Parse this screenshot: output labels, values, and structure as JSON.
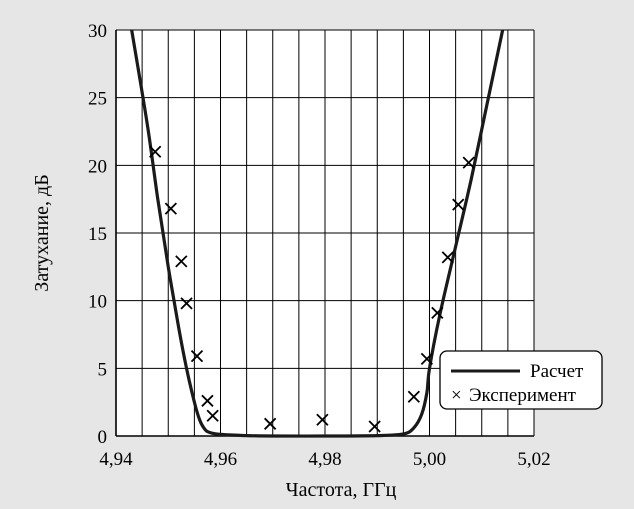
{
  "chart_data": {
    "type": "line",
    "xlabel": "Частота, ГГц",
    "ylabel": "Затухание, дБ",
    "xlim": [
      4.94,
      5.02
    ],
    "ylim": [
      0,
      30
    ],
    "x_ticks": [
      4.94,
      4.96,
      4.98,
      5.0,
      5.02
    ],
    "x_tick_labels": [
      "4,94",
      "4,96",
      "4,98",
      "5,00",
      "5,02"
    ],
    "y_ticks": [
      0,
      5,
      10,
      15,
      20,
      25,
      30
    ],
    "y_tick_labels": [
      "0",
      "5",
      "10",
      "15",
      "20",
      "25",
      "30"
    ],
    "grid": true,
    "legend_position": "bottom-right",
    "series": [
      {
        "name": "Расчет",
        "style": "line",
        "color": "#1a1a1a",
        "x": [
          4.943,
          4.946,
          4.948,
          4.95,
          4.952,
          4.9535,
          4.955,
          4.956,
          4.957,
          4.958,
          4.96,
          4.965,
          4.97,
          4.98,
          4.99,
          4.995,
          4.997,
          4.9985,
          4.9995,
          5.0,
          5.002,
          5.005,
          5.008,
          5.011,
          5.014
        ],
        "y": [
          30,
          23.0,
          17.5,
          12.5,
          8.0,
          5.0,
          2.5,
          1.2,
          0.5,
          0.25,
          0.12,
          0.03,
          0.0,
          0.0,
          0.03,
          0.15,
          0.6,
          1.6,
          3.2,
          5.0,
          9.0,
          14.0,
          19.0,
          24.5,
          30
        ]
      },
      {
        "name": "Эксперимент",
        "style": "marker",
        "marker": "×",
        "x": [
          4.9475,
          4.9505,
          4.9525,
          4.9535,
          4.9555,
          4.9575,
          4.9585,
          4.9695,
          4.9795,
          4.9895,
          4.997,
          4.9995,
          5.0015,
          5.0035,
          5.0055,
          5.0075
        ],
        "y": [
          21.0,
          16.8,
          12.9,
          9.8,
          5.9,
          2.6,
          1.5,
          0.9,
          1.2,
          0.7,
          2.9,
          5.7,
          9.1,
          13.2,
          17.1,
          20.2
        ]
      }
    ]
  }
}
